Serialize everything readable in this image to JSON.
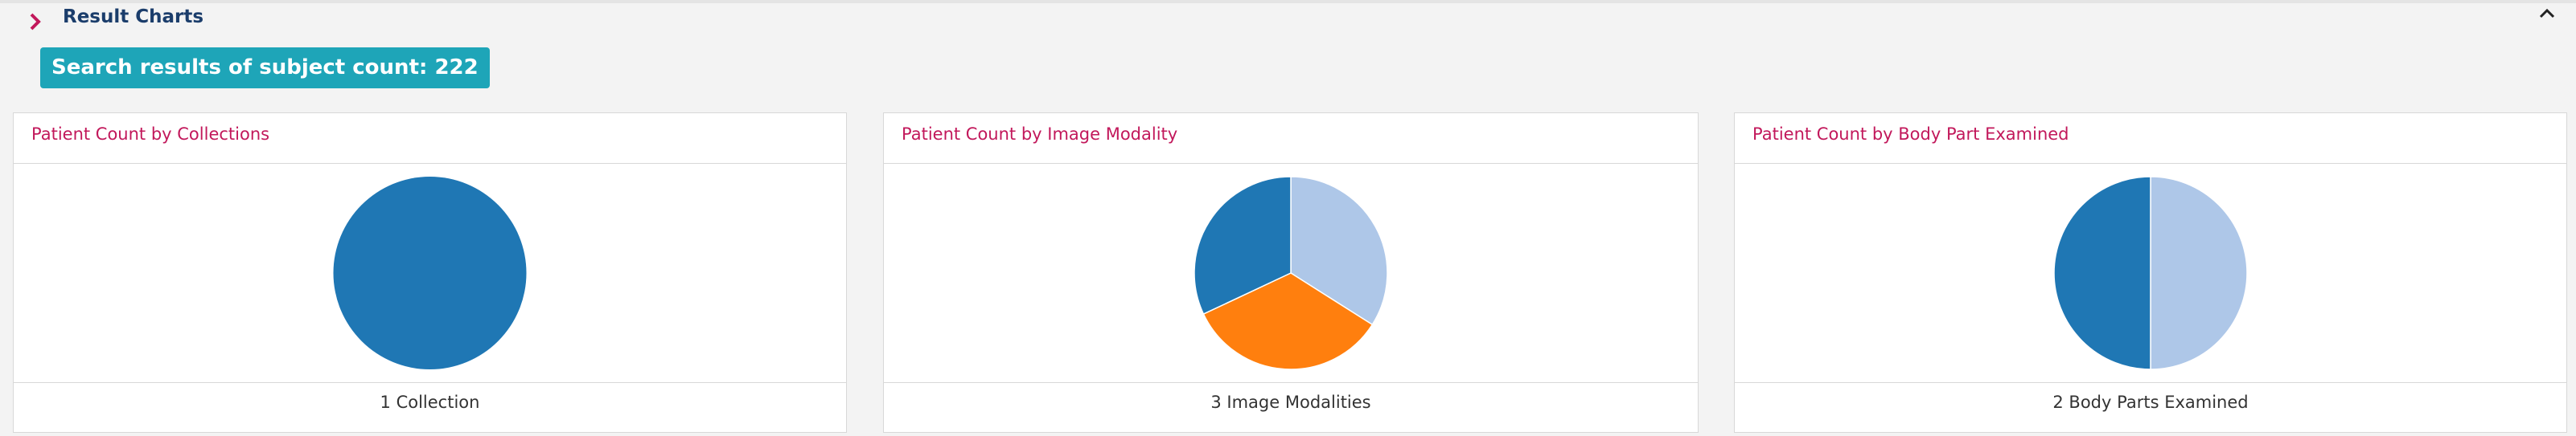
{
  "header": {
    "title": "Result Charts",
    "badge": "Search results of subject count: 222"
  },
  "chart_data": [
    {
      "type": "pie",
      "title": "Patient Count by Collections",
      "footer": "1 Collection",
      "series": [
        {
          "color": "#1f77b4",
          "values": [
            100
          ]
        }
      ]
    },
    {
      "type": "pie",
      "title": "Patient Count by Image Modality",
      "footer": "3 Image Modalities",
      "series": [
        {
          "color": "#aec7e8",
          "values": [
            34
          ]
        },
        {
          "color": "#ff7f0e",
          "values": [
            34
          ]
        },
        {
          "color": "#1f77b4",
          "values": [
            32
          ]
        }
      ]
    },
    {
      "type": "pie",
      "title": "Patient Count by Body Part Examined",
      "footer": "2 Body Parts Examined",
      "series": [
        {
          "color": "#aec7e8",
          "values": [
            50
          ]
        },
        {
          "color": "#1f77b4",
          "values": [
            50
          ]
        }
      ]
    }
  ]
}
